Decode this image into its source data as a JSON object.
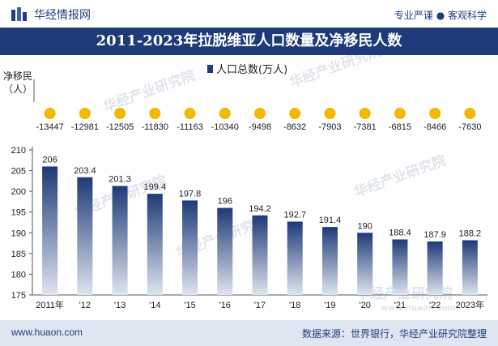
{
  "header": {
    "brand": "华经情报网",
    "tagline": "专业严谨 ● 客观科学"
  },
  "title": "2011-2023年拉脱维亚人口数量及净移民人数",
  "footer": {
    "website": "www.huaon.com",
    "source": "数据来源：世界银行，华经产业研究院整理"
  },
  "watermarks": [
    "华经产业研究院",
    "华经产业研究院",
    "华经产业研究院",
    "华经产业研究院",
    "华经产业研究院",
    "华经产业研究院",
    "www.huaon.com"
  ],
  "colors": {
    "header_bg": "#1e3a78",
    "bar_top": "#1e3a78",
    "bar_bottom": "#dfe4ee",
    "dot": "#f5b800",
    "footer_bg": "#dfe5f1"
  },
  "chart_data": {
    "type": "bar",
    "categories": [
      "2011年",
      "'12",
      "'13",
      "'14",
      "'15",
      "'16",
      "'17",
      "'18",
      "'19",
      "'20",
      "'21",
      "'22",
      "2023年"
    ],
    "series": [
      {
        "name": "人口总数(万人)",
        "values": [
          206,
          203.4,
          201.3,
          199.4,
          197.8,
          196,
          194.2,
          192.7,
          191.4,
          190,
          188.4,
          187.9,
          188.2
        ]
      },
      {
        "name": "净移民（人）",
        "type": "dot",
        "values": [
          -13447,
          -12981,
          -12505,
          -11830,
          -11163,
          -10340,
          -9498,
          -8632,
          -7903,
          -7381,
          -6815,
          -8466,
          -7630
        ]
      }
    ],
    "legend": "人口总数(万人)",
    "legend_position": "top-center",
    "net_migration_label": "净移民（人）",
    "y_ticks": [
      175,
      180,
      185,
      190,
      195,
      200,
      205,
      210
    ],
    "ylim": [
      175,
      210
    ],
    "grid": false
  }
}
